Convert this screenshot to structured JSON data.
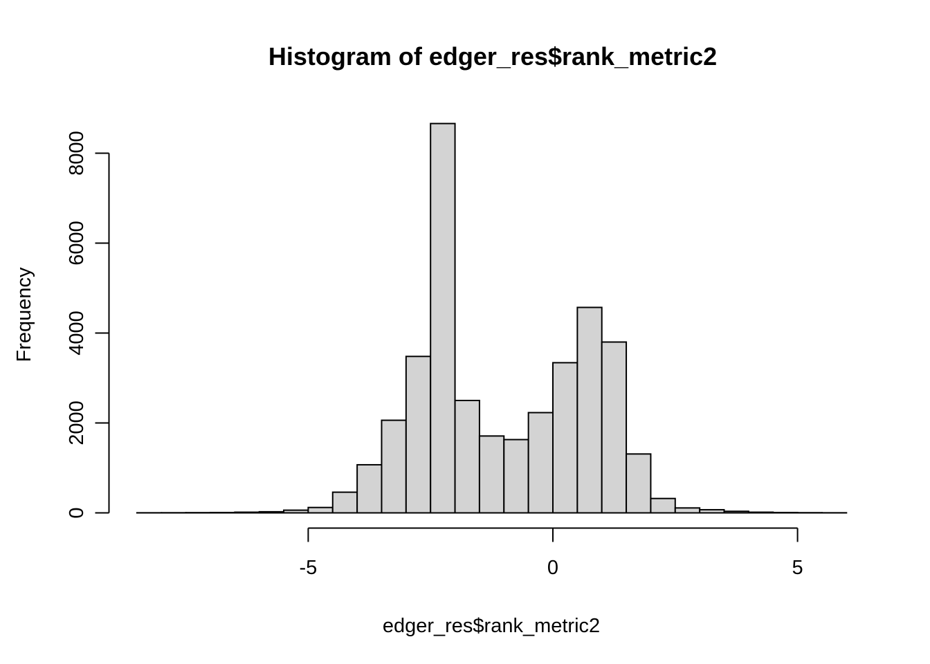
{
  "chart_data": {
    "type": "histogram",
    "title": "Histogram of edger_res$rank_metric2",
    "xlabel": "edger_res$rank_metric2",
    "ylabel": "Frequency",
    "bin_start": -8.5,
    "bin_width": 0.5,
    "counts": [
      2,
      3,
      5,
      8,
      15,
      25,
      60,
      120,
      460,
      1070,
      2060,
      3480,
      8660,
      2500,
      1710,
      1630,
      2230,
      3340,
      4570,
      3800,
      1310,
      320,
      110,
      70,
      35,
      15,
      8,
      4,
      2
    ],
    "x_ticks": [
      -5,
      0,
      5
    ],
    "y_ticks": [
      0,
      2000,
      4000,
      6000,
      8000
    ],
    "xlim": [
      -8.5,
      6
    ],
    "ylim": [
      0,
      8000
    ],
    "grid": false,
    "legend": "none",
    "colors": {
      "bar_fill": "#d3d3d3",
      "bar_stroke": "#000000",
      "axis": "#000000",
      "background": "#ffffff"
    }
  }
}
